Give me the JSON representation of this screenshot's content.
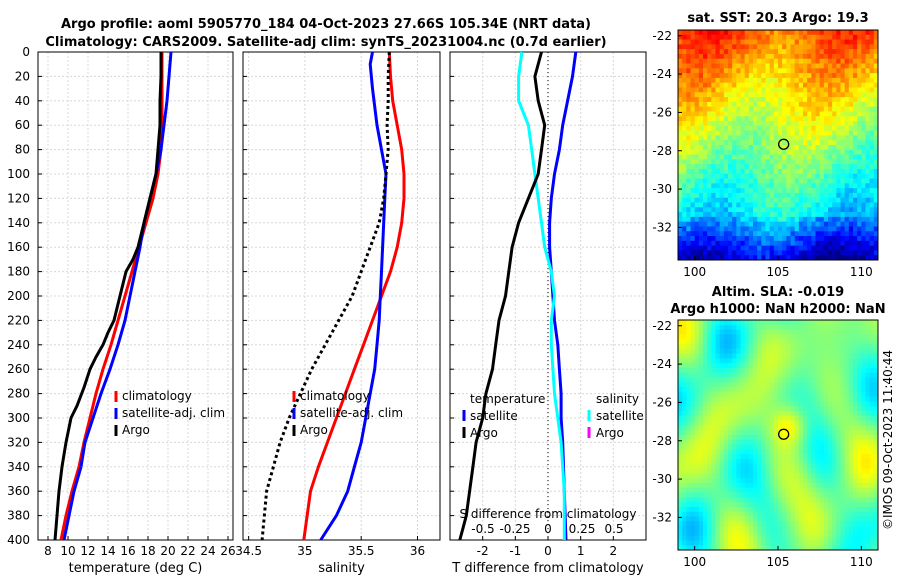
{
  "figure": {
    "title_line1": "Argo profile: aoml 5905770_184 04-Oct-2023 27.66S 105.34E (NRT data)",
    "title_line2": "Climatology: CARS2009. Satellite-adj clim: synTS_20231004.nc (0.7d earlier)",
    "side_stamp": "©IMOS 09-Oct-2023 11:40:44"
  },
  "colors": {
    "climatology": "#ff0000",
    "satellite": "#0000ff",
    "argo": "#000000",
    "sal_satellite": "#00ffff",
    "sal_argo": "#ff00ff"
  },
  "chart_data": [
    {
      "id": "temp",
      "type": "line",
      "xlabel": "temperature (deg C)",
      "xlim": [
        7,
        26.5
      ],
      "xticks": [
        8,
        10,
        12,
        14,
        16,
        18,
        20,
        22,
        24,
        26
      ],
      "ylim": [
        0,
        400
      ],
      "yticks": [
        0,
        20,
        40,
        60,
        80,
        100,
        120,
        140,
        160,
        180,
        200,
        220,
        240,
        260,
        280,
        300,
        320,
        340,
        360,
        380,
        400
      ],
      "legend": [
        "climatology",
        "satellite-adj. clim",
        "Argo"
      ],
      "series": [
        {
          "name": "climatology",
          "color": "#ff0000",
          "x": [
            19.4,
            19.4,
            19.4,
            19.4,
            19.3,
            19.0,
            18.5,
            17.8,
            17.1,
            16.4,
            15.7,
            15.0,
            14.3,
            13.5,
            12.8,
            12.2,
            11.6,
            11.1
          ],
          "y": [
            0,
            20,
            40,
            60,
            80,
            100,
            120,
            140,
            160,
            180,
            200,
            220,
            240,
            260,
            280,
            300,
            320,
            340
          ]
        },
        {
          "name": "satellite-adj. clim",
          "color": "#0000ff",
          "x": [
            20.3,
            20.1,
            19.9,
            19.6,
            19.3,
            18.8,
            18.2,
            17.6,
            17.2,
            16.7,
            16.2,
            15.7,
            15.0,
            14.2,
            13.3,
            12.5,
            11.7,
            11.3
          ],
          "y": [
            0,
            20,
            40,
            60,
            80,
            100,
            120,
            140,
            160,
            180,
            200,
            220,
            240,
            260,
            280,
            300,
            320,
            340
          ]
        },
        {
          "name": "Argo",
          "color": "#000000",
          "x": [
            19.3,
            19.3,
            19.2,
            19.2,
            19.0,
            18.8,
            18.5,
            18.2,
            17.6,
            17.0,
            16.5,
            15.8,
            15.2,
            14.6,
            14.0,
            13.5,
            12.8,
            12.2,
            11.6,
            10.9,
            10.3,
            9.8,
            9.4,
            9.1,
            8.9,
            8.7
          ],
          "y": [
            0,
            20,
            40,
            60,
            80,
            100,
            110,
            120,
            140,
            160,
            170,
            180,
            200,
            220,
            230,
            240,
            250,
            260,
            275,
            290,
            300,
            320,
            340,
            360,
            380,
            400
          ]
        }
      ],
      "extra_series": [
        {
          "name": "climatology",
          "color": "#ff0000",
          "x": [
            11.1,
            10.4,
            9.8,
            9.3
          ],
          "y": [
            340,
            360,
            380,
            400
          ]
        },
        {
          "name": "satellite-adj. clim",
          "color": "#0000ff",
          "x": [
            11.3,
            10.6,
            10.1,
            9.6
          ],
          "y": [
            340,
            360,
            380,
            400
          ]
        }
      ]
    },
    {
      "id": "sal",
      "type": "line",
      "xlabel": "salinity",
      "xlim": [
        34.45,
        36.2
      ],
      "xticks": [
        34.5,
        35,
        35.5,
        36
      ],
      "xticklabels": [
        "34.5",
        "35",
        "35.5",
        "36"
      ],
      "ylim": [
        0,
        400
      ],
      "legend": [
        "climatology",
        "satellite-adj. clim",
        "Argo"
      ],
      "series": [
        {
          "name": "climatology",
          "color": "#ff0000",
          "x": [
            35.75,
            35.76,
            35.78,
            35.82,
            35.86,
            35.88,
            35.88,
            35.86,
            35.82,
            35.76,
            35.68,
            35.6,
            35.52,
            35.44,
            35.36,
            35.28,
            35.2,
            35.12,
            35.05,
            34.99
          ],
          "y": [
            0,
            20,
            40,
            60,
            80,
            100,
            120,
            140,
            160,
            180,
            200,
            220,
            240,
            260,
            280,
            300,
            320,
            340,
            360,
            400
          ]
        },
        {
          "name": "satellite-adj. clim",
          "color": "#0000ff",
          "x": [
            35.6,
            35.58,
            35.6,
            35.64,
            35.68,
            35.72,
            35.71,
            35.7,
            35.69,
            35.68,
            35.67,
            35.66,
            35.64,
            35.62,
            35.58,
            35.54,
            35.5,
            35.44,
            35.38,
            35.28,
            35.14
          ],
          "y": [
            0,
            10,
            30,
            60,
            80,
            100,
            120,
            140,
            160,
            180,
            200,
            220,
            240,
            260,
            280,
            300,
            320,
            340,
            360,
            380,
            400
          ]
        },
        {
          "name": "Argo",
          "color": "#000000",
          "x": [
            35.75,
            35.74,
            35.74,
            35.73,
            35.74,
            35.72,
            35.7,
            35.66,
            35.58,
            35.5,
            35.42,
            35.3,
            35.18,
            35.06,
            34.96,
            34.86,
            34.78,
            34.72,
            34.66,
            34.62
          ],
          "y": [
            0,
            20,
            40,
            60,
            80,
            100,
            120,
            140,
            160,
            180,
            200,
            220,
            240,
            260,
            280,
            300,
            320,
            340,
            360,
            400
          ]
        }
      ]
    },
    {
      "id": "diff",
      "type": "line",
      "xlabel": "T difference from climatology",
      "xlabel_top": "S difference from climatology",
      "xlim": [
        -3,
        3
      ],
      "xticks": [
        -2,
        -1,
        0,
        1,
        2
      ],
      "top_axis_ticks": [
        "-0.5",
        "-0.25",
        "0",
        "0.25",
        "0.5"
      ],
      "ylim": [
        0,
        400
      ],
      "legend_temperature": {
        "title": "temperature",
        "items": [
          "satellite",
          "Argo"
        ]
      },
      "legend_salinity": {
        "title": "salinity",
        "items": [
          "satellite",
          "Argo"
        ]
      },
      "series": [
        {
          "name": "T satellite",
          "color": "#0000ff",
          "x": [
            0.85,
            0.75,
            0.6,
            0.45,
            0.35,
            0.2,
            0.1,
            0.05,
            0.05,
            0.1,
            0.15,
            0.2,
            0.3,
            0.35,
            0.4,
            0.4,
            0.45,
            0.5,
            0.55
          ],
          "y": [
            0,
            20,
            40,
            60,
            80,
            100,
            120,
            140,
            160,
            180,
            200,
            220,
            240,
            260,
            280,
            300,
            320,
            360,
            400
          ]
        },
        {
          "name": "S satellite",
          "color": "#00ffff",
          "x": [
            -0.8,
            -0.9,
            -0.9,
            -0.6,
            -0.5,
            -0.4,
            -0.3,
            -0.2,
            -0.1,
            0.1,
            0.2,
            0.1,
            0.1,
            0.15,
            0.2,
            0.3,
            0.4,
            0.5,
            0.5
          ],
          "y": [
            0,
            20,
            40,
            60,
            80,
            100,
            120,
            140,
            160,
            180,
            200,
            220,
            240,
            260,
            280,
            300,
            320,
            360,
            400
          ]
        },
        {
          "name": "T Argo",
          "color": "#000000",
          "x": [
            -0.2,
            -0.4,
            -0.3,
            -0.1,
            -0.2,
            -0.3,
            -0.6,
            -0.9,
            -1.1,
            -1.2,
            -1.3,
            -1.5,
            -1.6,
            -1.7,
            -1.9,
            -2.0,
            -2.2,
            -2.3,
            -2.4,
            -2.5,
            -2.6,
            -2.7
          ],
          "y": [
            0,
            20,
            40,
            60,
            80,
            100,
            120,
            140,
            160,
            180,
            200,
            220,
            240,
            260,
            280,
            300,
            320,
            340,
            360,
            380,
            390,
            400
          ]
        }
      ]
    },
    {
      "id": "sst_map",
      "type": "heatmap",
      "title": "sat. SST: 20.3 Argo: 19.3",
      "xticks": [
        "100",
        "105",
        "110"
      ],
      "yticks": [
        "-22",
        "-24",
        "-26",
        "-28",
        "-30",
        "-32"
      ],
      "xrange": [
        99,
        111
      ],
      "yrange": [
        -33.7,
        -21.7
      ],
      "marker": {
        "lon": 105.34,
        "lat": -27.66
      }
    },
    {
      "id": "sla_map",
      "type": "heatmap",
      "title_line1": "Altim. SLA: -0.019",
      "title_line2": "Argo h1000: NaN h2000: NaN",
      "xticks": [
        "100",
        "105",
        "110"
      ],
      "yticks": [
        "-22",
        "-24",
        "-26",
        "-28",
        "-30",
        "-32"
      ],
      "xrange": [
        99,
        111
      ],
      "yrange": [
        -33.7,
        -21.7
      ],
      "marker": {
        "lon": 105.34,
        "lat": -27.66
      }
    }
  ]
}
